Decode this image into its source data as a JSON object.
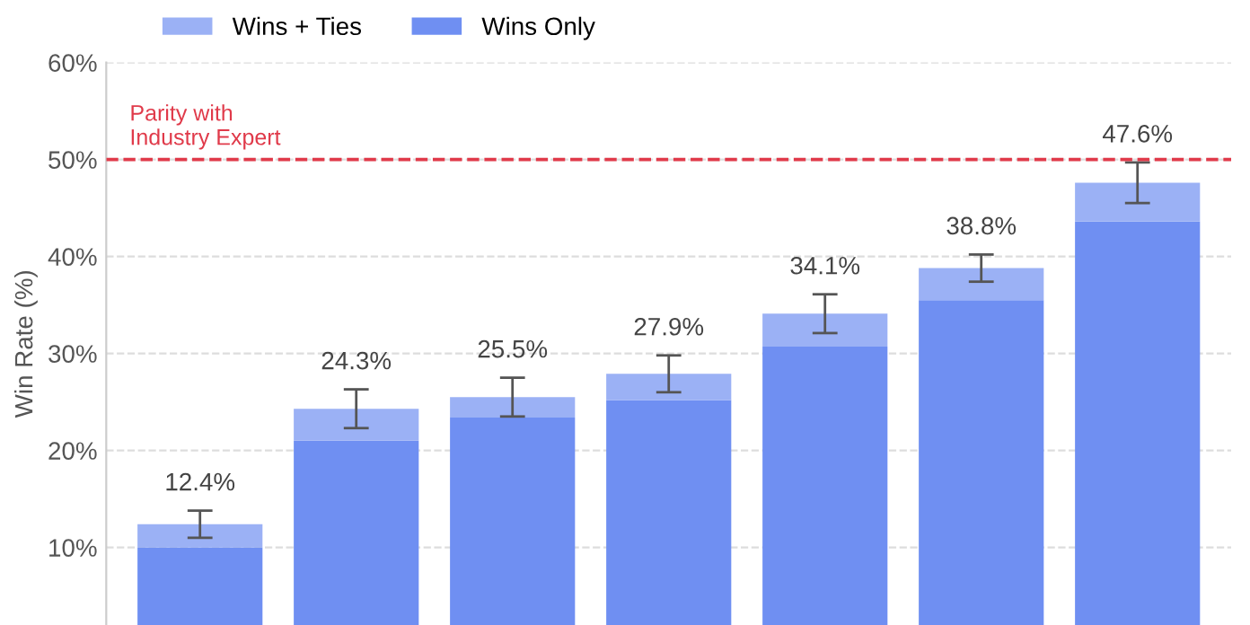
{
  "chart_data": {
    "type": "bar",
    "ylabel": "Win Rate (%)",
    "categories": [
      null,
      null,
      null,
      null,
      null,
      null,
      null
    ],
    "stacked": true,
    "series": [
      {
        "name": "Wins Only",
        "color": "#6f8ff2",
        "values": [
          10.0,
          21.0,
          23.4,
          25.2,
          30.7,
          35.5,
          43.6
        ]
      },
      {
        "name": "Wins + Ties",
        "color": "#9bb1f5",
        "values": [
          2.4,
          3.3,
          2.1,
          2.7,
          3.4,
          3.3,
          4.0
        ],
        "errors": [
          1.4,
          2.0,
          2.0,
          1.9,
          2.0,
          1.4,
          2.1
        ]
      }
    ],
    "totals": [
      "12.4%",
      "24.3%",
      "25.5%",
      "27.9%",
      "34.1%",
      "38.8%",
      "47.6%"
    ],
    "ylim": [
      2,
      60
    ],
    "yticks": [
      {
        "value": 10,
        "label": "10%"
      },
      {
        "value": 20,
        "label": "20%"
      },
      {
        "value": 30,
        "label": "30%"
      },
      {
        "value": 40,
        "label": "40%"
      },
      {
        "value": 50,
        "label": "50%"
      },
      {
        "value": 60,
        "label": "60%"
      }
    ],
    "ref_lines": [
      {
        "axis": "y",
        "value": 50,
        "label": "Parity with\nIndustry Expert",
        "color": "#e03a4a",
        "line_style": "dashed"
      }
    ],
    "grid": "y",
    "legend": "top left",
    "tick_labels": "y"
  }
}
